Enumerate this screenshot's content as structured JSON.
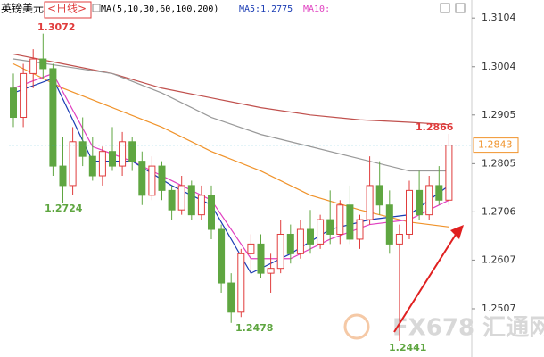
{
  "chart_data": {
    "type": "candlestick",
    "title": "英镑美元",
    "period": "<日线>",
    "indicator": "MA(5,10,30,60,100,200)",
    "ma_labels": [
      "MA5:1.2775",
      "MA10:"
    ],
    "watermark": "FX678 汇通网",
    "up_color": "#e03c3c",
    "down_color": "#5fa641",
    "open": [
      1.296,
      1.29,
      1.299,
      1.302,
      1.3,
      1.28,
      1.276,
      1.285,
      1.282,
      1.278,
      1.283,
      1.28,
      1.285,
      1.281,
      1.274,
      1.28,
      1.275,
      1.271,
      1.276,
      1.27,
      1.274,
      1.267,
      1.256,
      1.25,
      1.262,
      1.264,
      1.258,
      1.259,
      1.266,
      1.262,
      1.267,
      1.264,
      1.269,
      1.266,
      1.272,
      1.265,
      1.269,
      1.276,
      1.272,
      1.264,
      1.266,
      1.275,
      1.27,
      1.276,
      1.273
    ],
    "high": [
      1.299,
      1.301,
      1.304,
      1.3072,
      1.301,
      1.286,
      1.288,
      1.29,
      1.286,
      1.284,
      1.288,
      1.287,
      1.286,
      1.283,
      1.282,
      1.281,
      1.276,
      1.278,
      1.277,
      1.276,
      1.276,
      1.268,
      1.258,
      1.263,
      1.266,
      1.266,
      1.262,
      1.269,
      1.268,
      1.269,
      1.271,
      1.27,
      1.275,
      1.273,
      1.276,
      1.27,
      1.282,
      1.281,
      1.275,
      1.268,
      1.277,
      1.279,
      1.278,
      1.28,
      1.2866
    ],
    "low": [
      1.288,
      1.288,
      1.296,
      1.298,
      1.278,
      1.2724,
      1.274,
      1.28,
      1.277,
      1.276,
      1.279,
      1.278,
      1.279,
      1.272,
      1.273,
      1.273,
      1.269,
      1.27,
      1.269,
      1.269,
      1.265,
      1.254,
      1.2478,
      1.249,
      1.258,
      1.257,
      1.254,
      1.258,
      1.26,
      1.261,
      1.262,
      1.263,
      1.264,
      1.264,
      1.264,
      1.263,
      1.268,
      1.27,
      1.262,
      1.2441,
      1.265,
      1.269,
      1.269,
      1.272,
      1.272
    ],
    "close": [
      1.29,
      1.299,
      1.302,
      1.3,
      1.28,
      1.276,
      1.285,
      1.282,
      1.278,
      1.283,
      1.28,
      1.285,
      1.281,
      1.274,
      1.28,
      1.275,
      1.271,
      1.276,
      1.27,
      1.274,
      1.267,
      1.256,
      1.25,
      1.262,
      1.264,
      1.258,
      1.259,
      1.266,
      1.262,
      1.267,
      1.264,
      1.269,
      1.266,
      1.272,
      1.265,
      1.269,
      1.276,
      1.272,
      1.264,
      1.266,
      1.275,
      1.27,
      1.276,
      1.273,
      1.2843
    ],
    "ma_series": [
      {
        "color": "#c0504d",
        "x": [
          0,
          5,
          10,
          15,
          20,
          25,
          30,
          35,
          40,
          44
        ],
        "values": [
          1.303,
          1.301,
          1.299,
          1.296,
          1.294,
          1.292,
          1.2905,
          1.2895,
          1.289,
          1.2885
        ]
      },
      {
        "color": "#999999",
        "x": [
          0,
          5,
          10,
          15,
          20,
          25,
          30,
          35,
          40,
          44
        ],
        "values": [
          1.302,
          1.3005,
          1.299,
          1.295,
          1.29,
          1.2865,
          1.284,
          1.2815,
          1.279,
          1.279
        ]
      },
      {
        "color": "#f0932b",
        "x": [
          0,
          5,
          10,
          15,
          20,
          25,
          30,
          35,
          40,
          44
        ],
        "values": [
          1.301,
          1.296,
          1.292,
          1.288,
          1.283,
          1.279,
          1.274,
          1.271,
          1.2685,
          1.2675
        ]
      },
      {
        "color": "#e040c0",
        "x": [
          0,
          4,
          8,
          12,
          16,
          20,
          24,
          28,
          32,
          36,
          40,
          44
        ],
        "values": [
          1.296,
          1.299,
          1.284,
          1.281,
          1.277,
          1.273,
          1.261,
          1.261,
          1.265,
          1.268,
          1.269,
          1.273
        ]
      },
      {
        "color": "#1a3cb4",
        "x": [
          0,
          4,
          8,
          12,
          16,
          20,
          24,
          28,
          32,
          36,
          40,
          44
        ],
        "values": [
          1.295,
          1.298,
          1.281,
          1.281,
          1.276,
          1.272,
          1.258,
          1.262,
          1.267,
          1.269,
          1.27,
          1.276
        ]
      }
    ],
    "last_price": 1.2843,
    "annotations": [
      "1.3072",
      "1.2724",
      "1.2478",
      "1.2441",
      "1.2866"
    ],
    "ylim": [
      1.2408,
      1.3141
    ],
    "yticks": [
      1.3104,
      1.3004,
      1.2905,
      1.2805,
      1.2706,
      1.2607,
      1.2507
    ]
  }
}
